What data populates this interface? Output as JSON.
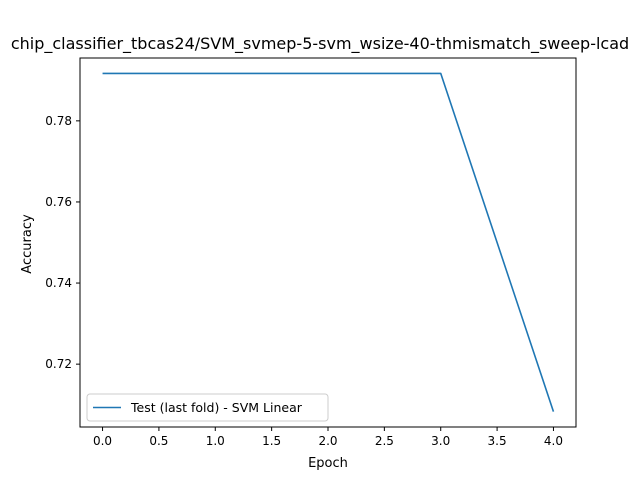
{
  "chart_data": {
    "type": "line",
    "title": "chip_classifier_tbcas24/SVM_svmep-5-svm_wsize-40-thmismatch_sweep-lcad",
    "xlabel": "Epoch",
    "ylabel": "Accuracy",
    "xlim": [
      -0.2,
      4.2
    ],
    "ylim": [
      0.7045,
      0.7955
    ],
    "xticks": [
      0.0,
      0.5,
      1.0,
      1.5,
      2.0,
      2.5,
      3.0,
      3.5,
      4.0
    ],
    "xtick_labels": [
      "0.0",
      "0.5",
      "1.0",
      "1.5",
      "2.0",
      "2.5",
      "3.0",
      "3.5",
      "4.0"
    ],
    "yticks": [
      0.72,
      0.74,
      0.76,
      0.78
    ],
    "ytick_labels": [
      "0.72",
      "0.74",
      "0.76",
      "0.78"
    ],
    "grid": false,
    "legend_position": "lower-left",
    "series": [
      {
        "name": "Test (last fold) - SVM Linear",
        "color": "#1f77b4",
        "x": [
          0,
          1,
          2,
          3,
          4
        ],
        "y": [
          0.7917,
          0.7917,
          0.7917,
          0.7917,
          0.7083
        ]
      }
    ]
  }
}
